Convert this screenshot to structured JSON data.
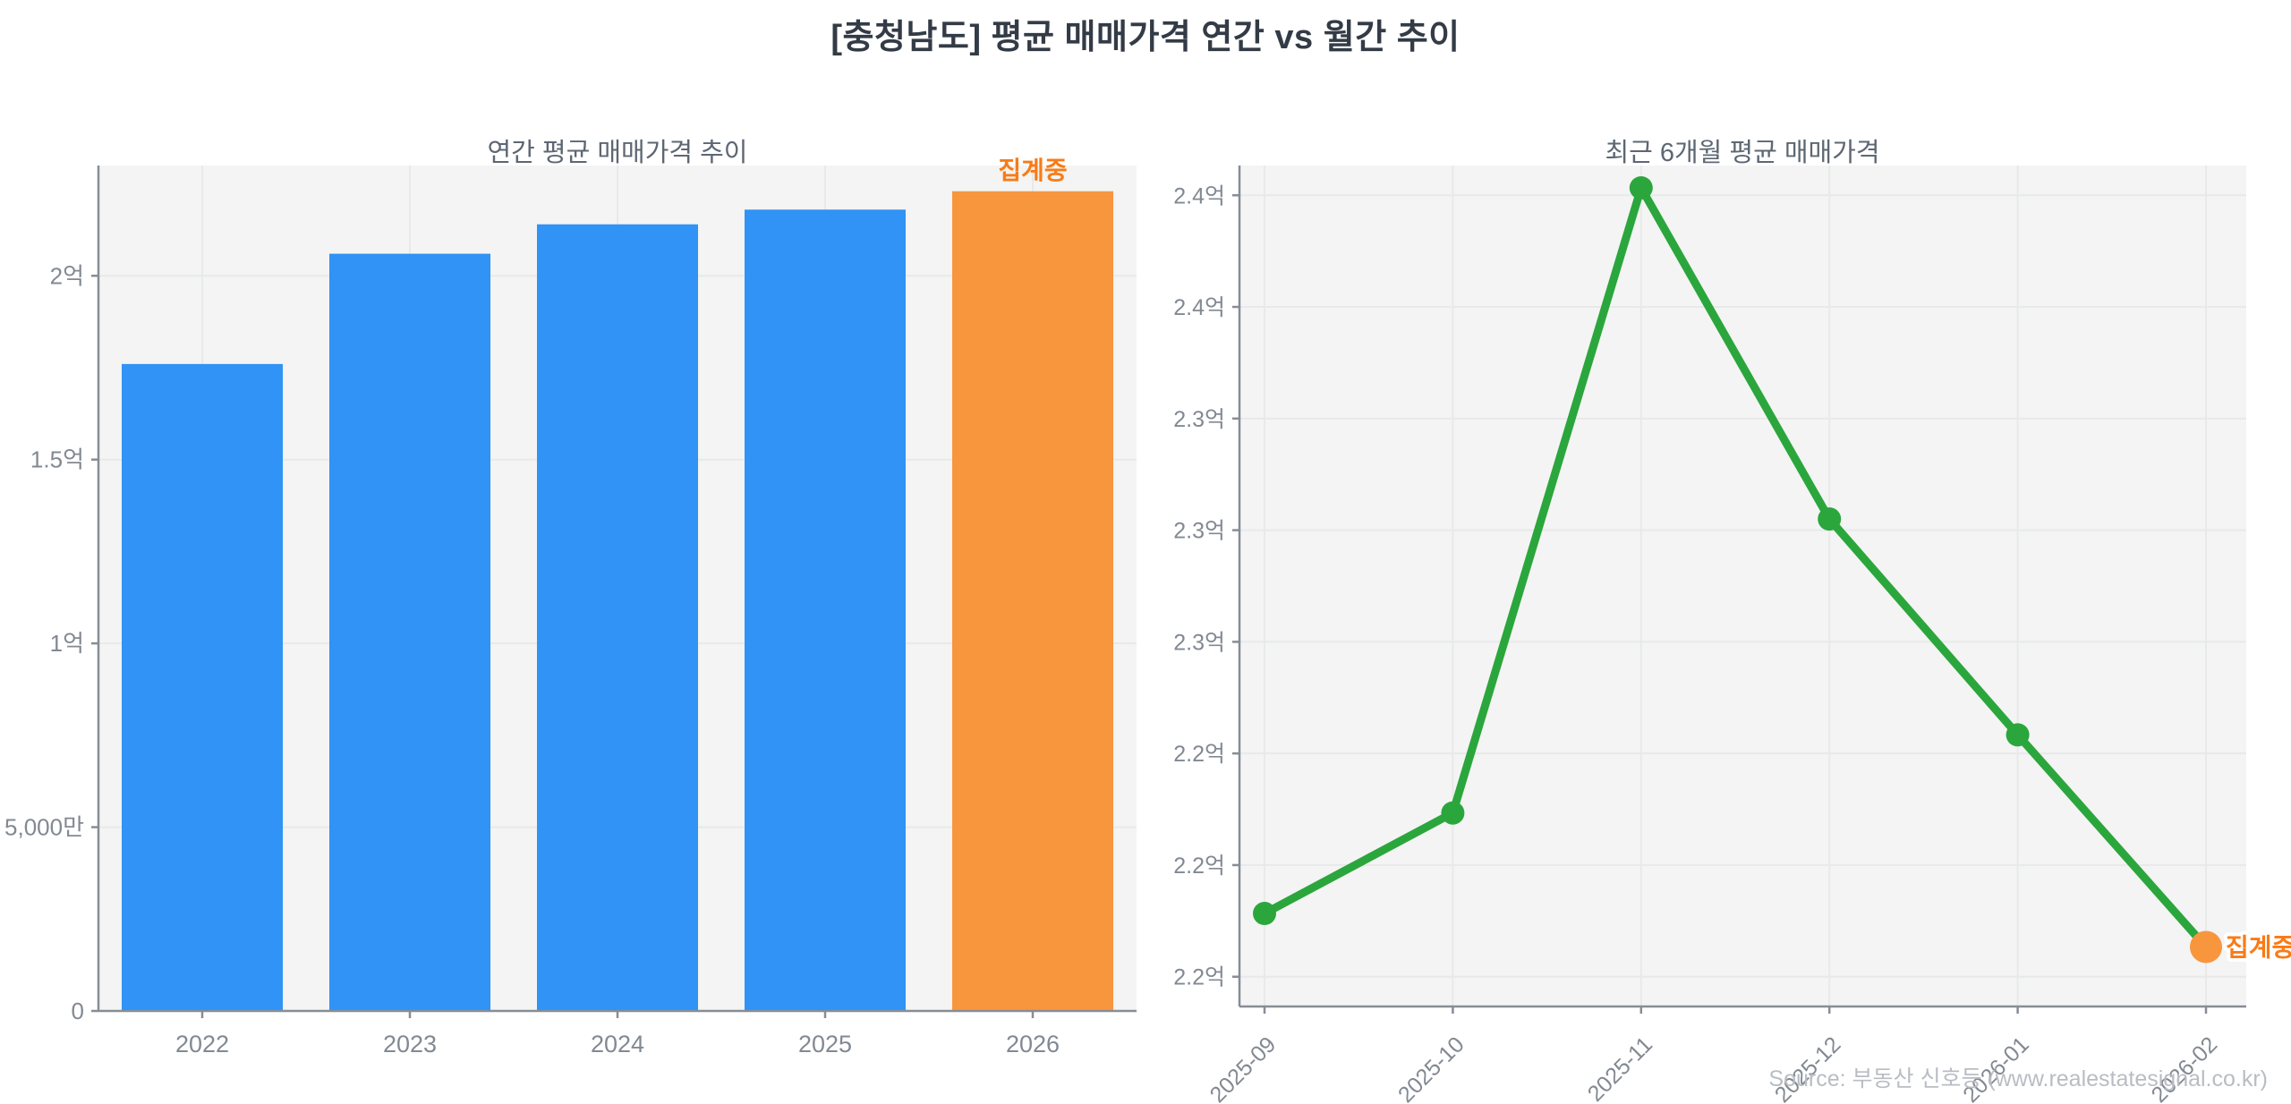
{
  "page": {
    "title": "[충청남도] 평균 매매가격 연간 vs 월간 추이",
    "source": "Source: 부동산 신호등 (www.realestatesignal.co.kr)"
  },
  "colors": {
    "bar_blue": "#3093F5",
    "bar_orange": "#F8963E",
    "line_green": "#2BA63C",
    "accent_orange": "#F97B17",
    "plot_bg": "#F3F4F3",
    "grid": "#E8E9E9",
    "axis": "#868D96",
    "tick_text": "#828992",
    "subtitle_text": "#5D6773",
    "title_text": "#333B46",
    "source_text": "#B9BDC3",
    "annotation_halo": "#FFFFFF"
  },
  "chart_data": [
    {
      "type": "bar",
      "title": "연간 평균 매매가격 추이",
      "unit": "억",
      "categories": [
        "2022",
        "2023",
        "2024",
        "2025",
        "2026"
      ],
      "values": [
        1.76,
        2.06,
        2.14,
        2.18,
        2.23
      ],
      "bar_colors": [
        "blue",
        "blue",
        "blue",
        "blue",
        "orange"
      ],
      "ylim": [
        0,
        2.3
      ],
      "yticks": [
        {
          "v": 0,
          "label": "0"
        },
        {
          "v": 0.5,
          "label": "5,000만"
        },
        {
          "v": 1,
          "label": "1억"
        },
        {
          "v": 1.5,
          "label": "1.5억"
        },
        {
          "v": 2,
          "label": "2억"
        }
      ],
      "grid": true,
      "legend": "none",
      "annotation": {
        "text": "집계중",
        "index": 4
      }
    },
    {
      "type": "line",
      "title": "최근 6개월 평균 매매가격",
      "unit": "억",
      "x": [
        "2025-09",
        "2025-10",
        "2025-11",
        "2025-12",
        "2026-01",
        "2026-02"
      ],
      "values": [
        2.197,
        2.224,
        2.392,
        2.303,
        2.245,
        2.188
      ],
      "ylim": [
        2.172,
        2.398
      ],
      "yticks": [
        {
          "v": 2.18,
          "label": "2.2억"
        },
        {
          "v": 2.21,
          "label": "2.2억"
        },
        {
          "v": 2.24,
          "label": "2.2억"
        },
        {
          "v": 2.27,
          "label": "2.3억"
        },
        {
          "v": 2.3,
          "label": "2.3억"
        },
        {
          "v": 2.33,
          "label": "2.3억"
        },
        {
          "v": 2.36,
          "label": "2.4억"
        },
        {
          "v": 2.39,
          "label": "2.4억"
        }
      ],
      "grid": true,
      "legend": "none",
      "x_label_rotation": -45,
      "annotation": {
        "text": "집계중",
        "index": 5
      }
    }
  ]
}
